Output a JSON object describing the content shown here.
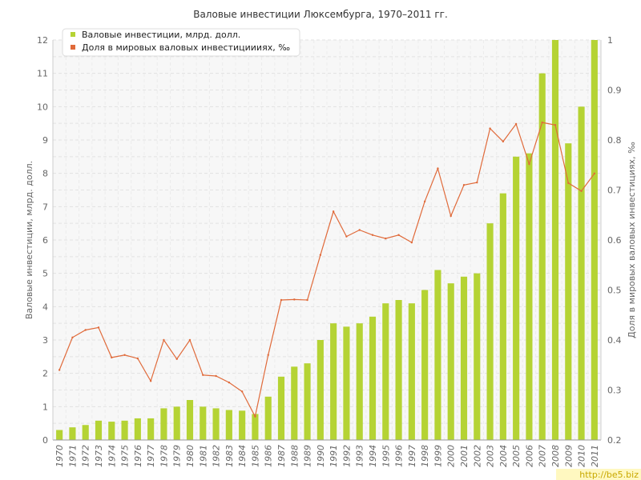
{
  "chart_data": {
    "type": "bar+line",
    "title": "Валовые инвестиции Люксембурга, 1970–2011 гг.",
    "y_left_label": "Валовые инвестиции, млрд. долл.",
    "y_right_label": "Доля в мировых валовых инвестициях, ‰",
    "y_left_lim": [
      0,
      12
    ],
    "y_right_lim": [
      0.2,
      1
    ],
    "y_left_ticks": [
      "0",
      "1",
      "2",
      "3",
      "4",
      "5",
      "6",
      "7",
      "8",
      "9",
      "10",
      "11",
      "12"
    ],
    "y_right_ticks": [
      "0.2",
      "0.3",
      "0.4",
      "0.5",
      "0.6",
      "0.7",
      "0.8",
      "0.9",
      "1"
    ],
    "categories": [
      "1970",
      "1971",
      "1972",
      "1973",
      "1974",
      "1975",
      "1976",
      "1977",
      "1978",
      "1979",
      "1980",
      "1981",
      "1982",
      "1983",
      "1984",
      "1985",
      "1986",
      "1987",
      "1988",
      "1989",
      "1990",
      "1991",
      "1992",
      "1993",
      "1994",
      "1995",
      "1996",
      "1997",
      "1998",
      "1999",
      "2000",
      "2001",
      "2002",
      "2003",
      "2004",
      "2005",
      "2006",
      "2007",
      "2008",
      "2009",
      "2010",
      "2011"
    ],
    "series": [
      {
        "name": "Валовые инвестиции, млрд. долл.",
        "kind": "bar",
        "axis": "left",
        "color": "#b5d334",
        "values": [
          0.3,
          0.38,
          0.45,
          0.58,
          0.55,
          0.58,
          0.65,
          0.65,
          0.95,
          1.0,
          1.2,
          1.0,
          0.95,
          0.9,
          0.88,
          0.78,
          1.3,
          1.9,
          2.2,
          2.3,
          3.0,
          3.5,
          3.4,
          3.5,
          3.7,
          4.1,
          4.2,
          4.1,
          4.5,
          5.1,
          4.7,
          4.9,
          5.0,
          6.5,
          7.4,
          8.5,
          8.6,
          11.0,
          12.0,
          8.9,
          10.0,
          12.0
        ]
      },
      {
        "name": "Доля в мировых валовых инвестициииях, ‰",
        "kind": "line",
        "axis": "right",
        "color": "#e06a3a",
        "values": [
          0.34,
          0.405,
          0.42,
          0.425,
          0.365,
          0.37,
          0.363,
          0.318,
          0.4,
          0.362,
          0.4,
          0.33,
          0.328,
          0.315,
          0.297,
          0.247,
          0.37,
          0.48,
          0.481,
          0.48,
          0.57,
          0.657,
          0.607,
          0.62,
          0.61,
          0.603,
          0.61,
          0.595,
          0.677,
          0.743,
          0.648,
          0.71,
          0.715,
          0.823,
          0.797,
          0.832,
          0.752,
          0.835,
          0.83,
          0.714,
          0.698,
          0.733
        ]
      }
    ],
    "legend_position": "top-left",
    "grid": true
  },
  "watermark": "http://be5.biz"
}
